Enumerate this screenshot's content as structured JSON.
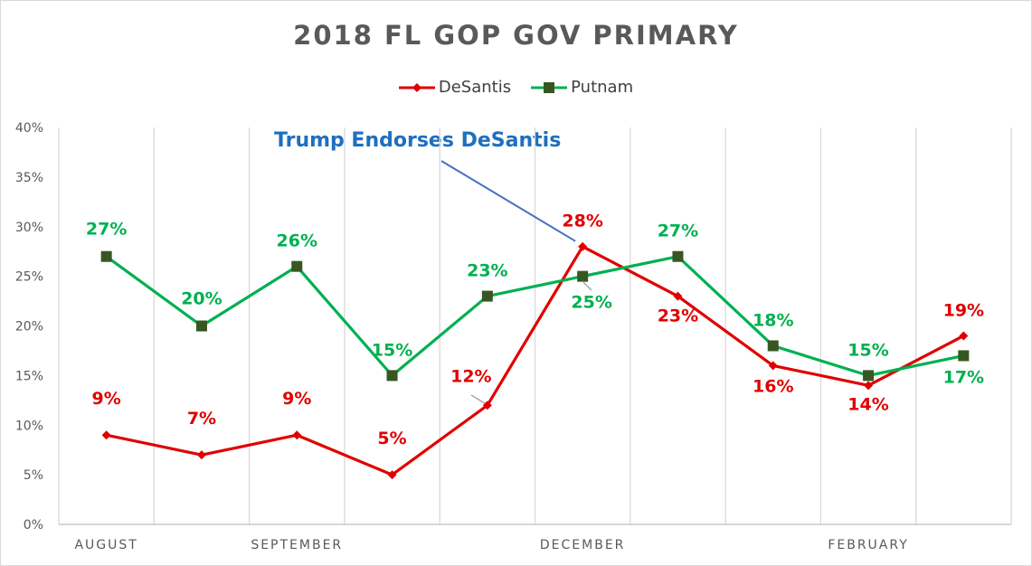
{
  "chart_data": {
    "type": "line",
    "title": "2018 FL GOP GOV PRIMARY",
    "x_points": 10,
    "category_labels": [
      {
        "label": "AUGUST",
        "at": 0
      },
      {
        "label": "SEPTEMBER",
        "at": 2
      },
      {
        "label": "DECEMBER",
        "at": 5
      },
      {
        "label": "FEBRUARY",
        "at": 8
      }
    ],
    "ylim": [
      0,
      40
    ],
    "yticks": [
      "0%",
      "5%",
      "10%",
      "15%",
      "20%",
      "25%",
      "30%",
      "35%",
      "40%"
    ],
    "grid": "vertical",
    "legend_position": "top",
    "series": [
      {
        "name": "DeSantis",
        "color": "#e00000",
        "marker": "diamond",
        "values": [
          9,
          7,
          9,
          5,
          12,
          28,
          23,
          16,
          14,
          19
        ],
        "labels": [
          "9%",
          "7%",
          "9%",
          "5%",
          "12%",
          "28%",
          "23%",
          "16%",
          "14%",
          "19%"
        ]
      },
      {
        "name": "Putnam",
        "color": "#00b050",
        "marker_color": "#375623",
        "marker": "square",
        "values": [
          27,
          20,
          26,
          15,
          23,
          25,
          27,
          18,
          15,
          17
        ],
        "labels": [
          "27%",
          "20%",
          "26%",
          "15%",
          "23%",
          "25%",
          "27%",
          "18%",
          "15%",
          "17%"
        ]
      }
    ],
    "annotations": [
      {
        "text": "Trump Endorses DeSantis",
        "color": "#1f6fbf",
        "x_index": 5,
        "y_value": 28
      }
    ]
  }
}
